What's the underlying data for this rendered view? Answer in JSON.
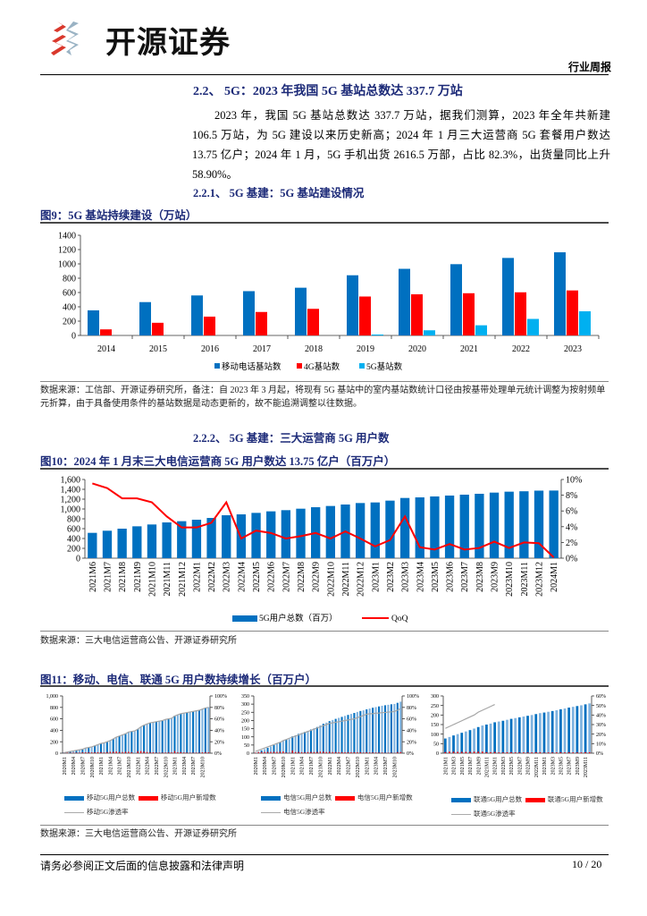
{
  "header": {
    "logo_text": "开源证券",
    "report_type": "行业周报"
  },
  "section": {
    "heading": "2.2、 5G：2023 年我国 5G 基站总数达 337.7 万站",
    "paragraph": "2023 年，我国 5G 基站总数达 337.7 万站，据我们测算，2023 年全年共新建 106.5 万站，为 5G 建设以来历史新高；2024 年 1 月三大运营商 5G 套餐用户数达 13.75 亿户；2024 年 1 月，5G 手机出货 2616.5 万部，占比 82.3%，出货量同比上升 58.90%。",
    "sub1": "2.2.1、 5G 基建：5G 基站建设情况",
    "sub2": "2.2.2、 5G 基建：三大运营商 5G 用户数"
  },
  "figures": {
    "fig9_title": "图9：5G 基站持续建设（万站）",
    "fig9_source": "数据来源：工信部、开源证券研究所，备注：自 2023 年 3 月起，将现有 5G 基站中的室内基站数统计口径由按基带处理单元统计调整为按射频单元折算，由于具备使用条件的基站数据是动态更新的，故不能追溯调整以往数据。",
    "fig10_title": "图10：2024 年 1 月末三大电信运营商 5G 用户数达 13.75 亿户（百万户）",
    "fig10_source": "数据来源：三大电信运营商公告、开源证券研究所",
    "fig11_title": "图11：移动、电信、联通 5G 用户数持续增长（百万户）",
    "fig11_source": "数据来源：三大电信运营商公告、开源证券研究所"
  },
  "footer": {
    "disclaimer": "请务必参阅正文后面的信息披露和法律声明",
    "page": "10 / 20"
  },
  "colors": {
    "blue": "#0070c0",
    "red": "#ff0000",
    "cyan": "#00b0f0",
    "line_gray": "#a6a6a6",
    "heading": "#1c2a78"
  },
  "chart_data": [
    {
      "type": "bar",
      "categories": [
        "2014",
        "2015",
        "2016",
        "2017",
        "2018",
        "2019",
        "2020",
        "2021",
        "2022",
        "2023"
      ],
      "series": [
        {
          "name": "移动电话基站数",
          "values": [
            351,
            466,
            559,
            619,
            667,
            841,
            931,
            996,
            1083,
            1162
          ]
        },
        {
          "name": "4G基站数",
          "values": [
            85,
            177,
            263,
            328,
            372,
            544,
            575,
            590,
            603,
            629
          ]
        },
        {
          "name": "5G基站数",
          "values": [
            0,
            0,
            0,
            0,
            0,
            13,
            72,
            142,
            231,
            337.7
          ]
        }
      ],
      "yticks": [
        "0",
        "200",
        "400",
        "600",
        "800",
        "1000",
        "1200",
        "1400"
      ],
      "ylim": [
        0,
        1400
      ],
      "legend": "bottom",
      "grid": false
    },
    {
      "type": "bar+line",
      "categories": [
        "2021M6",
        "2021M7",
        "2021M8",
        "2021M9",
        "2021M10",
        "2021M11",
        "2021M12",
        "2022M1",
        "2022M2",
        "2022M3",
        "2022M4",
        "2022M5",
        "2022M6",
        "2022M7",
        "2022M8",
        "2022M9",
        "2022M10",
        "2022M11",
        "2022M12",
        "2023M1",
        "2023M2",
        "2023M3",
        "2023M4",
        "2023M5",
        "2023M6",
        "2023M7",
        "2023M8",
        "2023M9",
        "2023M10",
        "2023M11",
        "2023M12",
        "2024M1"
      ],
      "series": [
        {
          "name": "5G用户总数（百万）",
          "axis": "left",
          "values": [
            515,
            558,
            600,
            648,
            685,
            727,
            752,
            782,
            818,
            873,
            891,
            921,
            952,
            976,
            1006,
            1036,
            1061,
            1091,
            1121,
            1133,
            1170,
            1224,
            1236,
            1255,
            1273,
            1291,
            1309,
            1333,
            1352,
            1360,
            1373,
            1375
          ]
        },
        {
          "name": "QoQ",
          "axis": "right",
          "values": [
            9.5,
            8.9,
            7.6,
            7.6,
            7.1,
            5.3,
            3.9,
            3.9,
            4.5,
            7.1,
            2.5,
            3.5,
            3.2,
            2.5,
            2.8,
            3.2,
            2.5,
            3.4,
            2.5,
            1.5,
            2.3,
            5.3,
            1.4,
            1.1,
            1.8,
            1.1,
            1.3,
            2.1,
            1.3,
            2.0,
            1.9,
            0.1
          ]
        }
      ],
      "yticks_left": [
        "0",
        "200",
        "400",
        "600",
        "800",
        "1,000",
        "1,200",
        "1,400",
        "1,600"
      ],
      "yticks_right": [
        "0%",
        "2%",
        "4%",
        "6%",
        "8%",
        "10%"
      ],
      "ylim_left": [
        0,
        1600
      ],
      "ylim_right": [
        0,
        10
      ],
      "legend": "bottom"
    },
    {
      "type": "bar+line",
      "tick_labels": [
        "2020M1",
        "2020M4",
        "2020M7",
        "2020M10",
        "2021M1",
        "2021M4",
        "2021M7",
        "2021M10",
        "2022M1",
        "2022M4",
        "2022M7",
        "2022M10",
        "2023M1",
        "2023M4",
        "2023M7",
        "2023M10"
      ],
      "tick_every": 3,
      "series": [
        {
          "name": "移动5G用户总数",
          "axis": "left",
          "values": [
            10,
            18,
            25,
            35,
            45,
            55,
            70,
            85,
            100,
            114,
            130,
            148,
            168,
            180,
            200,
            225,
            250,
            280,
            300,
            320,
            345,
            370,
            385,
            387,
            423,
            460,
            490,
            510,
            530,
            545,
            555,
            565,
            575,
            587,
            600,
            614,
            653,
            670,
            690,
            704,
            715,
            725,
            735,
            745,
            755,
            770,
            790,
            805
          ]
        },
        {
          "name": "移动5G用户新增数",
          "axis": "left",
          "values": [
            5,
            8,
            7,
            10,
            10,
            10,
            15,
            15,
            15,
            14,
            16,
            18,
            20,
            12,
            20,
            25,
            25,
            30,
            20,
            20,
            25,
            25,
            15,
            2,
            36,
            37,
            30,
            20,
            20,
            15,
            10,
            10,
            10,
            12,
            13,
            14,
            39,
            17,
            20,
            14,
            11,
            10,
            10,
            10,
            10,
            15,
            20,
            15
          ]
        },
        {
          "name": "移动5G渗透率",
          "axis": "right",
          "values": [
            1,
            2,
            3,
            4,
            5,
            6,
            7,
            9,
            10,
            11,
            13,
            15,
            17,
            18,
            20,
            22,
            25,
            28,
            30,
            32,
            34,
            37,
            38,
            39,
            42,
            46,
            49,
            51,
            53,
            54,
            55,
            56,
            57,
            59,
            60,
            61,
            65,
            67,
            69,
            70,
            71,
            72,
            73,
            74,
            75,
            77,
            79,
            80
          ]
        }
      ],
      "yticks_left": [
        "0",
        "200",
        "400",
        "600",
        "800",
        "1,000"
      ],
      "yticks_right": [
        "0%",
        "20%",
        "40%",
        "60%",
        "80%",
        "100%"
      ],
      "ylim_left": [
        0,
        1000
      ],
      "ylim_right": [
        0,
        100
      ]
    },
    {
      "type": "bar+line",
      "tick_labels": [
        "2020M1",
        "2020M4",
        "2020M7",
        "2020M10",
        "2021M1",
        "2021M4",
        "2021M7",
        "2021M10",
        "2022M1",
        "2022M4",
        "2022M7",
        "2022M10",
        "2023M1",
        "2023M4",
        "2023M7",
        "2023M10"
      ],
      "tick_every": 3,
      "series": [
        {
          "name": "电信5G用户总数",
          "axis": "left",
          "values": [
            3,
            10,
            17,
            25,
            33,
            41,
            50,
            58,
            68,
            79,
            83,
            86,
            103,
            110,
            118,
            124,
            130,
            137,
            145,
            152,
            160,
            170,
            180,
            187,
            196,
            203,
            210,
            216,
            222,
            228,
            234,
            240,
            246,
            252,
            258,
            262,
            268,
            273,
            278,
            282,
            286,
            290,
            293,
            296,
            299,
            301,
            308,
            315
          ]
        },
        {
          "name": "电信5G用户新增数",
          "axis": "left",
          "values": [
            3,
            7,
            7,
            8,
            8,
            8,
            9,
            8,
            10,
            11,
            4,
            3,
            17,
            7,
            8,
            6,
            6,
            7,
            8,
            7,
            8,
            10,
            10,
            7,
            9,
            7,
            7,
            6,
            6,
            6,
            6,
            6,
            6,
            6,
            6,
            4,
            6,
            5,
            5,
            4,
            4,
            4,
            3,
            3,
            3,
            2,
            7,
            7
          ]
        },
        {
          "name": "电信5G渗透率",
          "axis": "right",
          "values": [
            3,
            5,
            7,
            9,
            11,
            13,
            15,
            17,
            19,
            22,
            24,
            26,
            28,
            30,
            32,
            34,
            36,
            38,
            40,
            42,
            44,
            46,
            48,
            50,
            52,
            53,
            54,
            55,
            56,
            57,
            58,
            59,
            60,
            62,
            64,
            66,
            68,
            69,
            69,
            70,
            70,
            71,
            71,
            72,
            72,
            73,
            75,
            78
          ]
        }
      ],
      "yticks_left": [
        "0",
        "50",
        "100",
        "150",
        "200",
        "250",
        "300",
        "350"
      ],
      "yticks_right": [
        "0%",
        "20%",
        "40%",
        "60%",
        "80%",
        "100%"
      ],
      "ylim_left": [
        0,
        350
      ],
      "ylim_right": [
        0,
        100
      ]
    },
    {
      "type": "bar+line",
      "tick_labels": [
        "2021M1",
        "2021M3",
        "2021M5",
        "2021M7",
        "2021M9",
        "2021M11",
        "2022M1",
        "2022M3",
        "2022M5",
        "2022M7",
        "2022M9",
        "2022M11",
        "2023M1",
        "2023M3",
        "2023M5",
        "2023M7",
        "2023M9",
        "2023M11"
      ],
      "tick_every": 2,
      "series": [
        {
          "name": "联通5G用户总数",
          "axis": "left",
          "values": [
            77,
            85,
            93,
            100,
            107,
            114,
            121,
            129,
            137,
            145,
            150,
            155,
            162,
            166,
            170,
            175,
            180,
            184,
            188,
            192,
            196,
            200,
            205,
            210,
            213,
            217,
            221,
            225,
            230,
            234,
            239,
            243,
            247,
            251,
            256,
            261
          ]
        },
        {
          "name": "联通5G用户新增数",
          "axis": "left",
          "values": [
            6,
            8,
            8,
            7,
            7,
            7,
            7,
            8,
            8,
            8,
            5,
            5,
            7,
            4,
            4,
            5,
            5,
            4,
            4,
            4,
            4,
            4,
            5,
            5,
            3,
            4,
            4,
            4,
            5,
            4,
            5,
            4,
            4,
            4,
            5,
            5
          ]
        },
        {
          "name": "联通5G渗透率",
          "axis": "right",
          "values": [
            26,
            28,
            30,
            32,
            34,
            36,
            38,
            40,
            43,
            45,
            47,
            49,
            51
          ]
        }
      ],
      "yticks_left": [
        "0",
        "50",
        "100",
        "150",
        "200",
        "250",
        "300"
      ],
      "yticks_right": [
        "0%",
        "10%",
        "20%",
        "30%",
        "40%",
        "50%",
        "60%"
      ],
      "ylim_left": [
        0,
        300
      ],
      "ylim_right": [
        0,
        60
      ]
    }
  ]
}
